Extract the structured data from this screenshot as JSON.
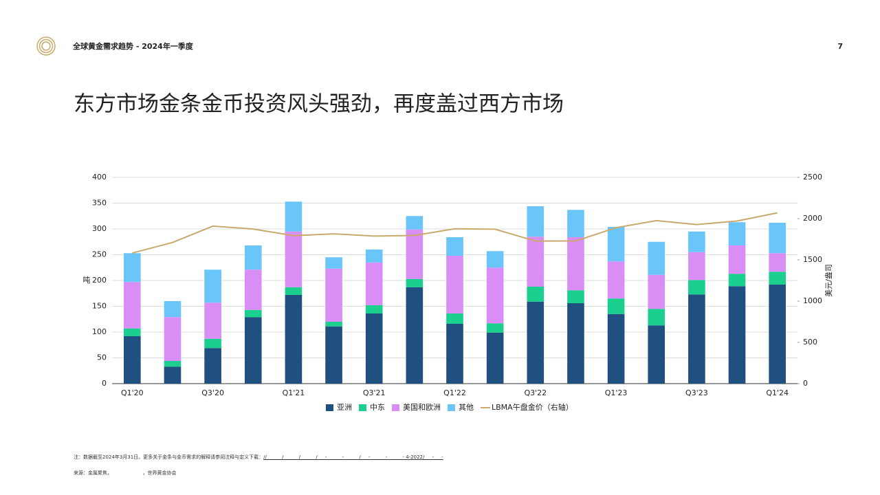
{
  "header": {
    "report": "全球黄金需求趋势 - 2024年一季度",
    "page": "7"
  },
  "title": "东方市场金条金币投资风头强劲，再度盖过西方市场",
  "chart_data": {
    "type": "bar",
    "stacked": true,
    "ylabel": "吨",
    "y2label": "美元/盎司",
    "categories": [
      "Q1'20",
      null,
      "Q3'20",
      null,
      "Q1'21",
      null,
      "Q3'21",
      null,
      "Q1'22",
      null,
      "Q3'22",
      null,
      "Q1'23",
      null,
      "Q3'23",
      null,
      "Q1'24"
    ],
    "ylim": [
      0,
      400
    ],
    "yticks": [
      0,
      50,
      100,
      150,
      200,
      250,
      300,
      350,
      400
    ],
    "y2lim": [
      0,
      2500
    ],
    "y2ticks": [
      0,
      500,
      1000,
      1500,
      2000,
      2500
    ],
    "grid": true,
    "legend": "bottom",
    "series": [
      {
        "name": "亚洲",
        "color": "#1f5080",
        "values": [
          92,
          33,
          69,
          129,
          172,
          111,
          136,
          187,
          116,
          99,
          159,
          156,
          135,
          113,
          173,
          189,
          192
        ]
      },
      {
        "name": "中东",
        "color": "#1bcf8f",
        "values": [
          15,
          11,
          18,
          14,
          15,
          9,
          16,
          16,
          20,
          18,
          29,
          25,
          30,
          32,
          28,
          24,
          25
        ]
      },
      {
        "name": "美国和欧洲",
        "color": "#d98ef5",
        "values": [
          90,
          85,
          70,
          78,
          108,
          103,
          83,
          96,
          112,
          108,
          97,
          103,
          72,
          66,
          54,
          55,
          36
        ]
      },
      {
        "name": "其他",
        "color": "#6ac6f8",
        "values": [
          56,
          31,
          64,
          47,
          58,
          22,
          25,
          26,
          36,
          32,
          59,
          53,
          67,
          64,
          40,
          45,
          59
        ]
      },
      {
        "name": "LBMA午盘金价（右轴）",
        "color": "#c9a96b",
        "type": "line",
        "axis": "y2",
        "values": [
          1583,
          1711,
          1909,
          1874,
          1794,
          1816,
          1789,
          1796,
          1877,
          1872,
          1728,
          1729,
          1890,
          1976,
          1928,
          1971,
          2070
        ]
      }
    ]
  },
  "footnote": {
    "note": "注：数据截至2024年3月31日。更多关于金条与金币需求的解释请参阅注释与定义下载：",
    "link": "//          /          /          /     -          -          /     -          -          - 4-2022/     -     -",
    "source": "来源：金属聚焦，                    ，世界黄金协会"
  }
}
